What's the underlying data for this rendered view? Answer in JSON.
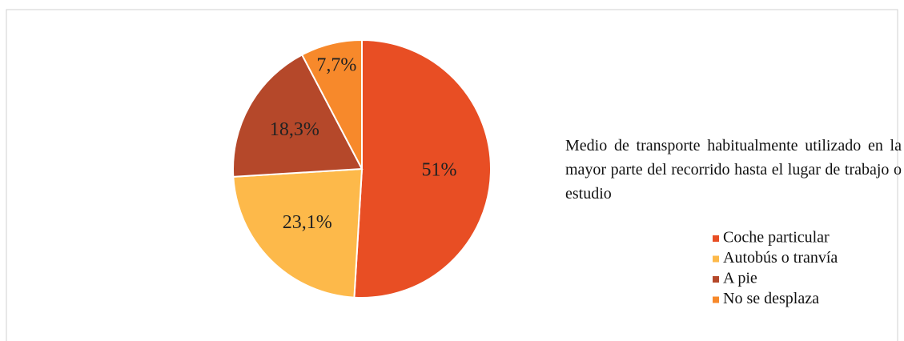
{
  "chart_data": {
    "type": "pie",
    "title": "Medio de transporte habitualmente utilizado en la mayor parte del recorrido hasta el lugar de trabajo o estudio",
    "categories": [
      "Coche particular",
      "Autobús o tranvía",
      "A pie",
      "No se desplaza"
    ],
    "values": [
      51,
      23.1,
      18.3,
      7.7
    ],
    "value_labels": [
      "51%",
      "23,1%",
      "18,3%",
      "7,7%"
    ],
    "colors": [
      "#e84e24",
      "#fdb94a",
      "#b5482a",
      "#f7892b"
    ],
    "legend": "right"
  }
}
